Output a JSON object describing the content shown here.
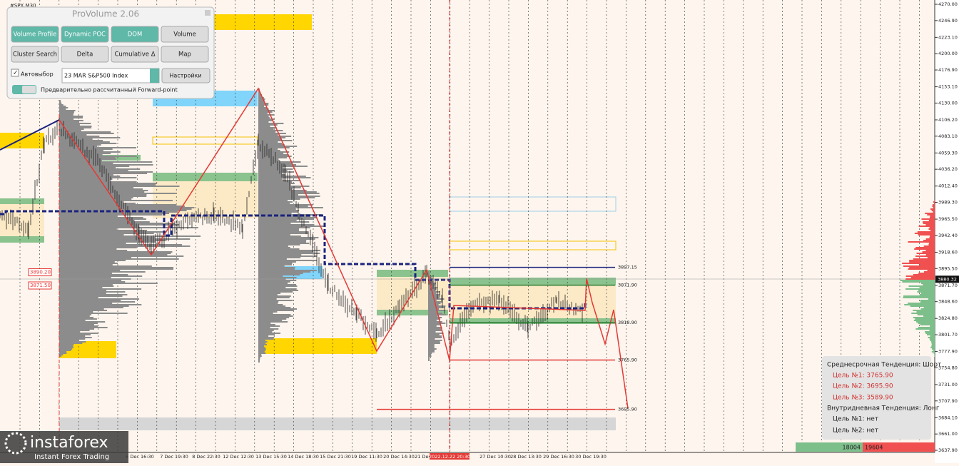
{
  "symbol": "#SPX,M30",
  "panel": {
    "title": "ProVolume 2.06",
    "buttons": [
      "Volume Profile",
      "Dynamic POC",
      "DOM",
      "Volume",
      "Cluster Search",
      "Delta",
      "Cumulative Δ",
      "Map"
    ],
    "auto_select": "Автовыбор",
    "instrument": "23 MAR S&P500 Index",
    "settings": "Настройки",
    "forward_point": "Предварительно рассчитанный Forward-point"
  },
  "price_axis": {
    "ticks": [
      {
        "value": 4270,
        "label": "4270.00"
      },
      {
        "value": 4246.9,
        "label": "4246.90"
      },
      {
        "value": 4223.1,
        "label": "4223.10"
      },
      {
        "value": 4200,
        "label": "4200.00"
      },
      {
        "value": 4176.9,
        "label": "4176.90"
      },
      {
        "value": 4153.1,
        "label": "4153.10"
      },
      {
        "value": 4130,
        "label": "4130.00"
      },
      {
        "value": 4106.2,
        "label": "4106.20"
      },
      {
        "value": 4083.1,
        "label": "4083.10"
      },
      {
        "value": 4059.3,
        "label": "4059.30"
      },
      {
        "value": 4036.2,
        "label": "4036.20"
      },
      {
        "value": 4012.4,
        "label": "4012.40"
      },
      {
        "value": 3989.3,
        "label": "3989.30"
      },
      {
        "value": 3965.5,
        "label": "3965.50"
      },
      {
        "value": 3942.4,
        "label": "3942.40"
      },
      {
        "value": 3918.6,
        "label": "3918.60"
      },
      {
        "value": 3895.5,
        "label": "3895.50"
      },
      {
        "value": 3871.7,
        "label": "3871.70"
      },
      {
        "value": 3848.6,
        "label": "3848.60"
      },
      {
        "value": 3824.8,
        "label": "3824.80"
      },
      {
        "value": 3801.7,
        "label": "3801.70"
      },
      {
        "value": 3777.9,
        "label": "3777.90"
      },
      {
        "value": 3754.8,
        "label": "3754.80"
      },
      {
        "value": 3731,
        "label": "3731.00"
      },
      {
        "value": 3707.9,
        "label": "3707.90"
      },
      {
        "value": 3684.1,
        "label": "3684.10"
      },
      {
        "value": 3661,
        "label": "3661.00"
      },
      {
        "value": 3637.9,
        "label": "3637.90"
      }
    ],
    "current": {
      "value": 3880.32,
      "label": "3880.32"
    }
  },
  "dates": [
    "6 Dec 16:30",
    "7 Dec 19:30",
    "8 Dec 22:30",
    "12 Dec 12:30",
    "13 Dec 15:30",
    "14 Dec 18:30",
    "15 Dec 21:30",
    "19 Dec 11:30",
    "20 Dec 14:30",
    "21 Dec 17:30",
    "2022.12.22 20:30",
    "27 Dec 10:30",
    "28 Dec 13:30",
    "29 Dec 16:30",
    "30 Dec 19:30"
  ],
  "left_levels": [
    {
      "value": 3890.2,
      "label": "3890.20"
    },
    {
      "value": 3871.5,
      "label": "3871.50"
    }
  ],
  "levels": [
    {
      "value": 3897.15,
      "label": "3897.15",
      "color": "#1a237e"
    },
    {
      "value": 3871.9,
      "label": "3871.90",
      "color": "#2e7d32"
    },
    {
      "value": 3818.9,
      "label": "3818.90",
      "color": "#2e7d32"
    },
    {
      "value": 3765.9,
      "label": "3765.90",
      "color": "#e53935"
    },
    {
      "value": 3695.9,
      "label": "3695.90",
      "color": "#e53935"
    }
  ],
  "info": {
    "mid_trend": "Среднесрочная Тенденция: Шорт",
    "mid_targets": [
      "Цель №1: 3765.90",
      "Цель №2: 3695.90",
      "Цель №3: 3589.90"
    ],
    "intraday_trend": "Внутридневная Тенденция: Лонг",
    "intraday_targets": [
      "Цель №1: нет",
      "Цель №2: нет"
    ]
  },
  "delta_bar": {
    "buy": "18004",
    "sell": "19604"
  },
  "logo": {
    "name": "instaforex",
    "tagline": "Instant Forex Trading"
  }
}
